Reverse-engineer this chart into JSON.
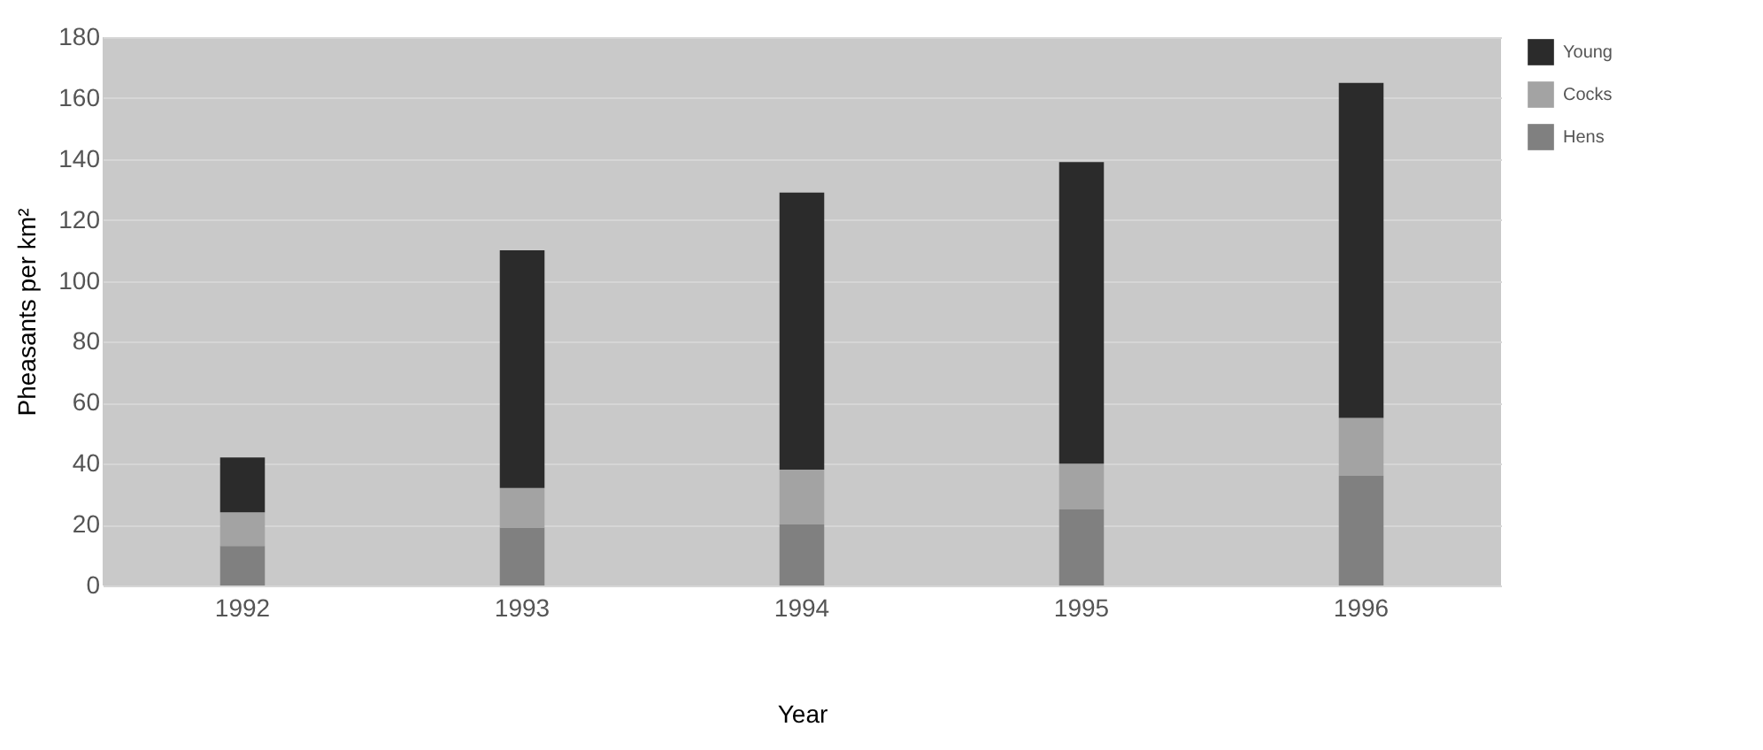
{
  "chart_data": {
    "type": "bar",
    "stacked": true,
    "xlabel": "Year",
    "ylabel": "Pheasants per km²",
    "categories": [
      "1992",
      "1993",
      "1994",
      "1995",
      "1996"
    ],
    "series": [
      {
        "name": "Hens",
        "color": "#808080",
        "values": [
          13,
          19,
          20,
          25,
          36
        ]
      },
      {
        "name": "Cocks",
        "color": "#a3a3a3",
        "values": [
          11,
          13,
          18,
          15,
          19
        ]
      },
      {
        "name": "Young",
        "color": "#2b2b2b",
        "values": [
          18,
          78,
          91,
          99,
          110
        ]
      }
    ],
    "ylim": [
      0,
      180
    ],
    "yticks": [
      0,
      20,
      40,
      60,
      80,
      100,
      120,
      140,
      160,
      180
    ],
    "grid": "y",
    "legend": "top right"
  }
}
